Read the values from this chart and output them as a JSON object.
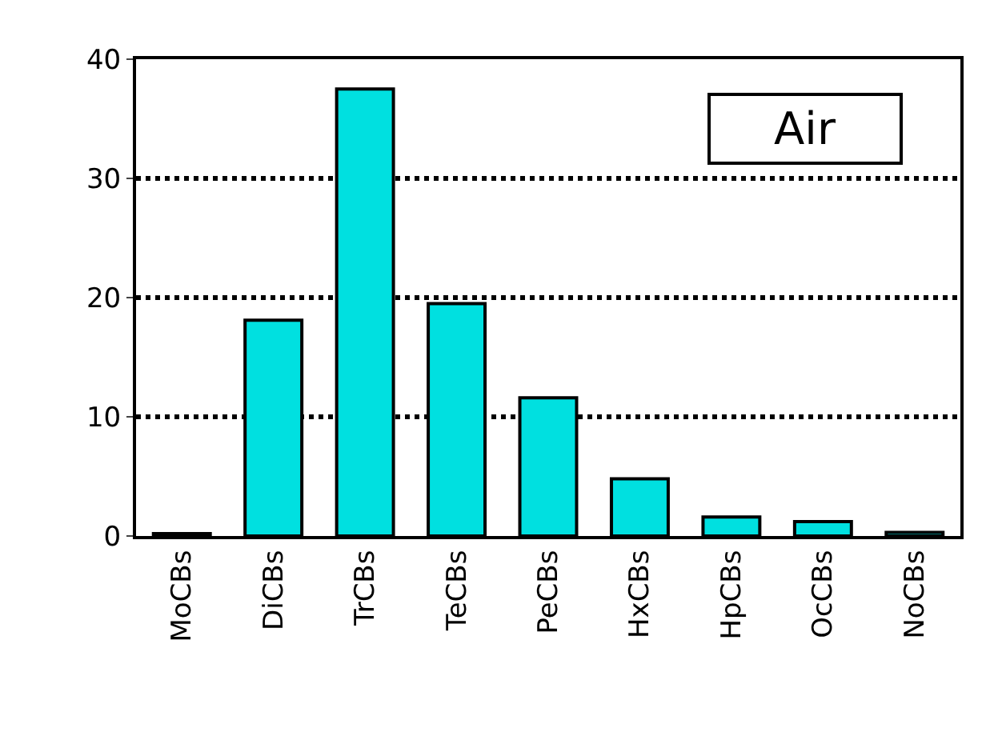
{
  "chart_data": {
    "type": "bar",
    "categories": [
      "MoCBs",
      "DiCBs",
      "TrCBs",
      "TeCBs",
      "PeCBs",
      "HxCBs",
      "HpCBs",
      "OcCBs",
      "NoCBs"
    ],
    "values": [
      0.2,
      18.1,
      37.5,
      19.5,
      11.6,
      4.8,
      1.6,
      1.2,
      0.3
    ],
    "color": "#00e0e0",
    "ylim": [
      0,
      40
    ],
    "yticks": [
      0,
      10,
      20,
      30,
      40
    ],
    "grid": "y",
    "annotations": [
      "Air"
    ]
  }
}
